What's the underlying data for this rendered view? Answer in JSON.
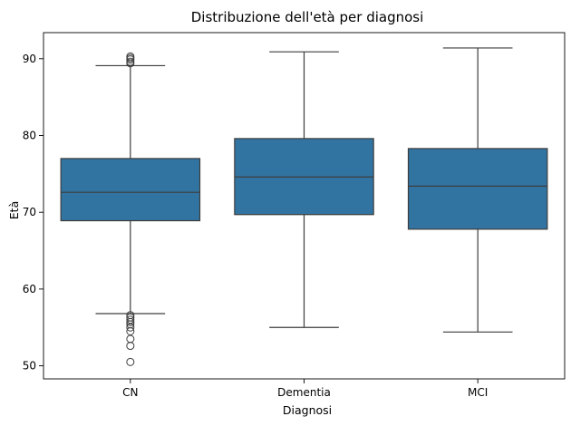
{
  "chart_data": {
    "type": "boxplot",
    "title": "Distribuzione dell'età per diagnosi",
    "xlabel": "Diagnosi",
    "ylabel": "Età",
    "categories": [
      "CN",
      "Dementia",
      "MCI"
    ],
    "ylim": [
      48.3,
      93.4
    ],
    "yticks": [
      50,
      60,
      70,
      80,
      90
    ],
    "grid": false,
    "box_color": "#3274a1",
    "line_color": "#3d3d3d",
    "boxes": [
      {
        "category": "CN",
        "whisker_low": 56.8,
        "q1": 68.9,
        "median": 72.6,
        "q3": 77.0,
        "whisker_high": 89.1,
        "outliers": [
          90.3,
          90.1,
          89.9,
          89.6,
          89.4,
          56.6,
          56.3,
          56.0,
          55.7,
          55.4,
          55.0,
          54.5,
          53.5,
          52.6,
          50.5
        ]
      },
      {
        "category": "Dementia",
        "whisker_low": 55.0,
        "q1": 69.7,
        "median": 74.6,
        "q3": 79.6,
        "whisker_high": 90.9,
        "outliers": []
      },
      {
        "category": "MCI",
        "whisker_low": 54.4,
        "q1": 67.8,
        "median": 73.4,
        "q3": 78.3,
        "whisker_high": 91.4,
        "outliers": []
      }
    ]
  }
}
